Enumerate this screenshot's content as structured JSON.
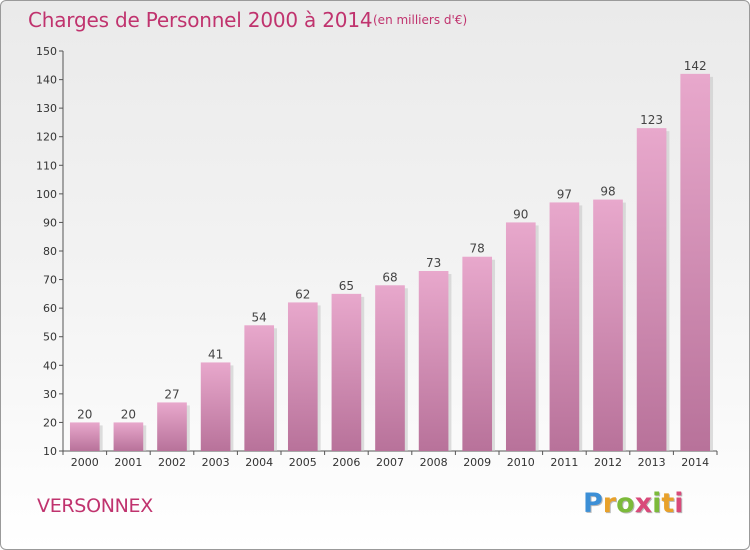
{
  "title": "Charges de Personnel 2000 à 2014",
  "subtitle": "(en milliers d'€)",
  "commune": "VERSONNEX",
  "logo": {
    "letters": [
      "P",
      "r",
      "o",
      "x",
      "i",
      "t",
      "i"
    ],
    "colors": [
      "#3c8fd6",
      "#e8a12a",
      "#7cba3a",
      "#d94a7a"
    ]
  },
  "chart_data": {
    "type": "bar",
    "title": "Charges de Personnel 2000 à 2014",
    "subtitle": "(en milliers d'€)",
    "categories": [
      "2000",
      "2001",
      "2002",
      "2003",
      "2004",
      "2005",
      "2006",
      "2007",
      "2008",
      "2009",
      "2010",
      "2011",
      "2012",
      "2013",
      "2014"
    ],
    "values": [
      20,
      20,
      27,
      41,
      54,
      62,
      65,
      68,
      73,
      78,
      90,
      97,
      98,
      123,
      142
    ],
    "ylim": [
      10,
      150
    ],
    "yticks": [
      10,
      20,
      30,
      40,
      50,
      60,
      70,
      80,
      90,
      100,
      110,
      120,
      130,
      140,
      150
    ],
    "grid": false,
    "bar_color_top": "#e8a8cc",
    "bar_color_bottom": "#b8729a"
  }
}
